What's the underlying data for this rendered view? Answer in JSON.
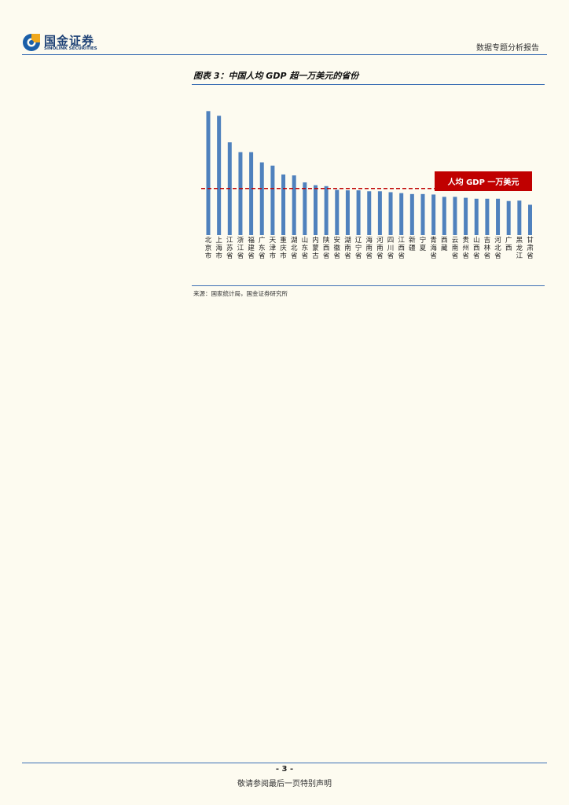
{
  "header": {
    "logo_cn": "国金证券",
    "logo_en": "SINOLINK SECURITIES",
    "report_type": "数据专题分析报告"
  },
  "figure": {
    "title": "图表 3：中国人均 GDP 超一万美元的省份",
    "source": "来源：国家统计局，国金证券研究所"
  },
  "chart_data": {
    "type": "bar",
    "categories": [
      "北京市",
      "上海市",
      "江苏省",
      "浙江省",
      "福建省",
      "广东省",
      "天津市",
      "重庆市",
      "湖北省",
      "山东省",
      "内蒙古",
      "陕西省",
      "安徽省",
      "湖南省",
      "辽宁省",
      "海南省",
      "河南省",
      "四川省",
      "江西省",
      "新疆",
      "宁夏",
      "青海省",
      "西藏",
      "云南省",
      "贵州省",
      "山西省",
      "吉林省",
      "河北省",
      "广西",
      "黑龙江",
      "甘肃省"
    ],
    "values": [
      2.66,
      2.56,
      1.99,
      1.78,
      1.78,
      1.56,
      1.49,
      1.3,
      1.28,
      1.13,
      1.07,
      1.05,
      0.97,
      0.96,
      0.96,
      0.94,
      0.94,
      0.92,
      0.9,
      0.88,
      0.88,
      0.87,
      0.82,
      0.82,
      0.8,
      0.78,
      0.78,
      0.78,
      0.73,
      0.74,
      0.65
    ],
    "threshold": 1.0,
    "threshold_label": "人均 GDP 一万美元",
    "ylim": [
      0,
      2.75
    ],
    "color": "#4f81bd",
    "threshold_color": "#c00000"
  },
  "footer": {
    "page": "- 3 -",
    "disclaimer": "敬请参阅最后一页特别声明"
  }
}
